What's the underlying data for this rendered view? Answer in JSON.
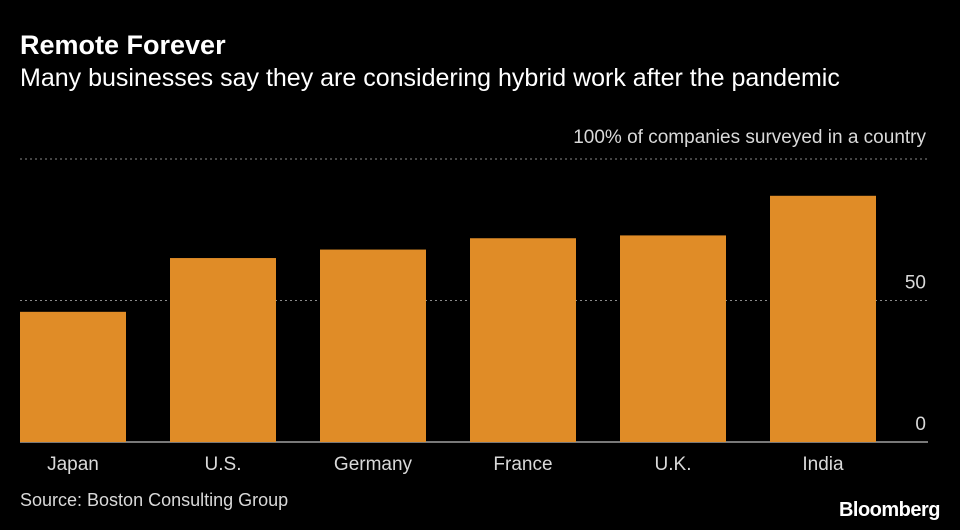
{
  "chart_data": {
    "type": "bar",
    "title": "Remote Forever",
    "subtitle": "Many businesses say they are considering hybrid work after the pandemic",
    "axis_note": "100% of companies surveyed in a country",
    "categories": [
      "Japan",
      "U.S.",
      "Germany",
      "France",
      "U.K.",
      "India"
    ],
    "values": [
      46,
      65,
      68,
      72,
      73,
      87
    ],
    "ylim": [
      0,
      100
    ],
    "yticks": [
      0,
      50,
      100
    ],
    "ytick_labels": [
      "0",
      "50",
      ""
    ],
    "xlabel": "",
    "ylabel": "",
    "grid": true,
    "source": "Source: Boston Consulting Group"
  },
  "brand": "Bloomberg",
  "colors": {
    "background": "#000000",
    "bar": "#e08c27",
    "text": "#ffffff",
    "muted_text": "#d9d9d9",
    "grid": "#8a8a8a",
    "baseline": "#bfbfbf"
  }
}
